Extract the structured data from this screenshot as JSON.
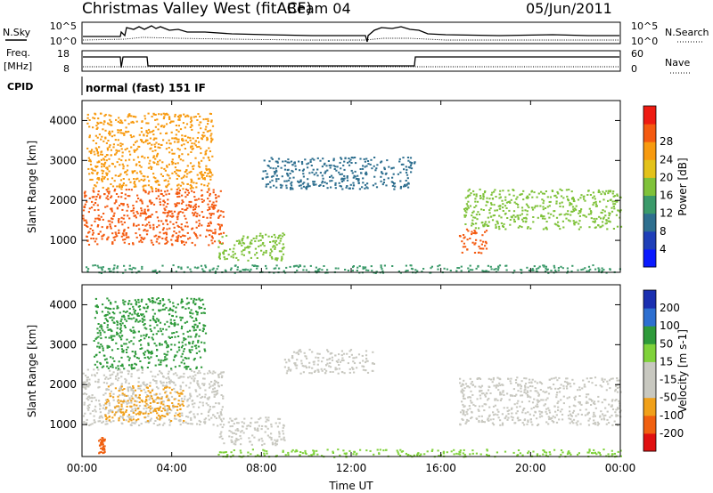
{
  "header": {
    "title": "Christmas Valley West (fitACF)",
    "beam": "Beam 04",
    "date": "05/Jun/2011"
  },
  "panels": {
    "nsky_label": "N.Sky",
    "nsky_ticks": [
      "10^5",
      "10^0"
    ],
    "nsearch_label": "N.Search",
    "nsearch_ticks": [
      "10^5",
      "10^0"
    ],
    "freq_label_line1": "Freq.",
    "freq_label_line2": "[MHz]",
    "freq_ticks": [
      "18",
      "8"
    ],
    "nave_label": "Nave",
    "nave_ticks": [
      "60",
      "0"
    ],
    "cpid_label": "CPID",
    "cpid_text": "normal (fast) 151 IF"
  },
  "chart_data": [
    {
      "type": "heatmap",
      "name": "power",
      "xlabel": "Time UT",
      "ylabel": "Slant Range [km]",
      "x_ticks": [
        "00:00",
        "04:00",
        "08:00",
        "12:00",
        "16:00",
        "20:00",
        "00:00"
      ],
      "xlim_hours": [
        0,
        24
      ],
      "y_ticks": [
        1000,
        2000,
        3000,
        4000
      ],
      "ylim": [
        200,
        4500
      ],
      "colorbar_label": "Power [dB]",
      "colorbar_ticks": [
        4,
        8,
        12,
        16,
        20,
        24,
        28
      ],
      "colorbar_colors": [
        "#0a1aff",
        "#1f3fb8",
        "#2e6f8f",
        "#3b9a6a",
        "#7fc23a",
        "#e3c21a",
        "#f79a0f",
        "#f45a10",
        "#ee1b12"
      ],
      "bands": [
        {
          "t0": 0.0,
          "t1": 6.3,
          "r0": 900,
          "r1": 2300,
          "level": 28
        },
        {
          "t0": 0.2,
          "t1": 5.8,
          "r0": 2300,
          "r1": 4200,
          "level": 24
        },
        {
          "t0": 6.0,
          "t1": 9.0,
          "r0": 500,
          "r1": 1200,
          "level": 16
        },
        {
          "t0": 8.0,
          "t1": 14.8,
          "r0": 2300,
          "r1": 3100,
          "level": 6
        },
        {
          "t0": 16.8,
          "t1": 18.0,
          "r0": 700,
          "r1": 1300,
          "level": 26
        },
        {
          "t0": 17.0,
          "t1": 24.0,
          "r0": 1300,
          "r1": 2300,
          "level": 16
        },
        {
          "t0": 0.0,
          "t1": 24.0,
          "r0": 200,
          "r1": 400,
          "level": 10
        }
      ]
    },
    {
      "type": "heatmap",
      "name": "velocity",
      "xlabel": "Time UT",
      "ylabel": "Slant Range [km]",
      "x_ticks": [
        "00:00",
        "04:00",
        "08:00",
        "12:00",
        "16:00",
        "20:00",
        "00:00"
      ],
      "xlim_hours": [
        0,
        24
      ],
      "y_ticks": [
        1000,
        2000,
        3000,
        4000
      ],
      "ylim": [
        200,
        4500
      ],
      "colorbar_label": "Velocity [m s-1]",
      "colorbar_ticks": [
        200,
        100,
        50,
        15,
        -15,
        -50,
        -100,
        -200
      ],
      "colorbar_colors": [
        "#1a2fb0",
        "#2d6fd0",
        "#2e9a3a",
        "#7fd23a",
        "#c8c8c0",
        "#c8c8c0",
        "#f0a01a",
        "#f06010",
        "#e01010"
      ],
      "bands": [
        {
          "t0": 0.0,
          "t1": 6.3,
          "r0": 1000,
          "r1": 2400,
          "level": 0
        },
        {
          "t0": 0.5,
          "t1": 5.5,
          "r0": 2400,
          "r1": 4200,
          "level": 60
        },
        {
          "t0": 1.0,
          "t1": 4.5,
          "r0": 1100,
          "r1": 2000,
          "level": -60
        },
        {
          "t0": 6.0,
          "t1": 9.0,
          "r0": 500,
          "r1": 1200,
          "level": 0
        },
        {
          "t0": 9.0,
          "t1": 13.0,
          "r0": 2300,
          "r1": 2900,
          "level": -40
        },
        {
          "t0": 16.8,
          "t1": 24.0,
          "r0": 1000,
          "r1": 2200,
          "level": 0
        },
        {
          "t0": 0.7,
          "t1": 1.0,
          "r0": 300,
          "r1": 700,
          "level": -200
        },
        {
          "t0": 6.0,
          "t1": 24.0,
          "r0": 200,
          "r1": 400,
          "level": 30
        }
      ]
    }
  ]
}
